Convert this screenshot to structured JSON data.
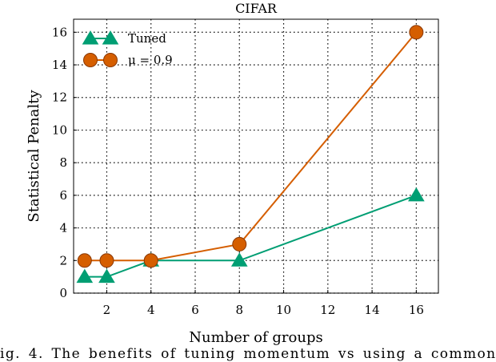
{
  "chart_data": {
    "type": "line",
    "title": "CIFAR",
    "xlabel": "Number of groups",
    "ylabel": "Statistical Penalty",
    "xlim": [
      0.5,
      17
    ],
    "ylim": [
      0,
      16.8
    ],
    "xticks": [
      2,
      4,
      6,
      8,
      10,
      12,
      14,
      16
    ],
    "yticks": [
      0,
      2,
      4,
      6,
      8,
      10,
      12,
      14,
      16
    ],
    "grid": true,
    "legend_position": "top-left",
    "series": [
      {
        "name": "Tuned",
        "marker": "triangle",
        "color": "#009E73",
        "x": [
          1,
          2,
          4,
          8,
          16
        ],
        "y": [
          1,
          1,
          2,
          2,
          6
        ]
      },
      {
        "name": "μ = 0.9",
        "marker": "circle",
        "color": "#D55E00",
        "x": [
          1,
          2,
          4,
          8,
          16
        ],
        "y": [
          2,
          2,
          2,
          3,
          16
        ]
      }
    ]
  },
  "caption": "ig. 4.  The benefits of tuning momentum vs using a common"
}
